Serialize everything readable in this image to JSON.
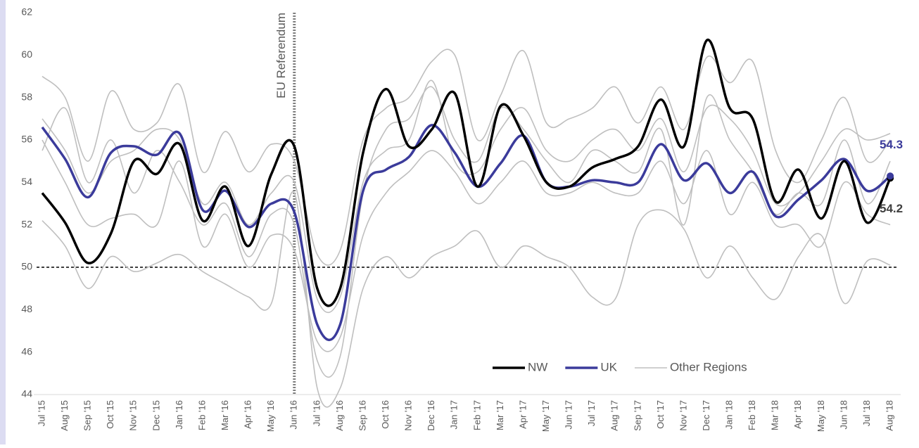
{
  "chart_data": {
    "type": "line",
    "categories": [
      "Jul '15",
      "Aug '15",
      "Sep '15",
      "Oct '15",
      "Nov '15",
      "Dec '15",
      "Jan '16",
      "Feb '16",
      "Mar '16",
      "Apr '16",
      "May '16",
      "Jun '16",
      "Jul '16",
      "Aug '16",
      "Sep '16",
      "Oct '16",
      "Nov '16",
      "Dec '16",
      "Jan '17",
      "Feb '17",
      "Mar '17",
      "Apr '17",
      "May '17",
      "Jun '17",
      "Jul '17",
      "Aug '17",
      "Sep '17",
      "Oct '17",
      "Nov '17",
      "Dec '17",
      "Jan '18",
      "Feb '18",
      "Mar '18",
      "Apr '18",
      "May '18",
      "Jun '18",
      "Jul '18",
      "Aug '18"
    ],
    "series": [
      {
        "name": "NW",
        "color": "#000000",
        "values": [
          53.5,
          52.1,
          50.2,
          51.6,
          55.0,
          54.4,
          55.8,
          52.2,
          53.8,
          51.0,
          54.4,
          55.7,
          49.0,
          49.0,
          55.4,
          58.4,
          55.7,
          56.5,
          58.2,
          53.8,
          57.6,
          56.2,
          54.0,
          53.8,
          54.7,
          55.1,
          55.7,
          57.9,
          55.7,
          60.7,
          57.5,
          57.0,
          53.1,
          54.6,
          52.3,
          55.0,
          52.1,
          54.2
        ]
      },
      {
        "name": "UK",
        "color": "#3b3b9b",
        "values": [
          56.6,
          55.1,
          53.3,
          55.4,
          55.7,
          55.3,
          56.3,
          52.7,
          53.6,
          51.9,
          53.0,
          52.6,
          47.3,
          47.3,
          53.6,
          54.6,
          55.2,
          56.7,
          55.4,
          53.8,
          54.9,
          56.2,
          54.0,
          53.8,
          54.1,
          54.0,
          54.0,
          55.8,
          54.1,
          54.9,
          53.5,
          54.5,
          52.4,
          53.2,
          54.1,
          55.1,
          53.6,
          54.3
        ]
      }
    ],
    "other_regions": {
      "name": "Other Regions",
      "color": "#bfbfbf",
      "lines": [
        [
          59.0,
          58.0,
          55.0,
          58.3,
          56.5,
          56.8,
          58.6,
          54.5,
          56.4,
          54.5,
          55.8,
          55.0,
          50.6,
          50.8,
          56.0,
          57.5,
          58.0,
          59.7,
          60.0,
          56.0,
          58.1,
          60.2,
          56.8,
          57.0,
          57.5,
          58.5,
          56.8,
          58.5,
          56.5,
          59.9,
          58.7,
          59.7,
          55.5,
          54.0,
          56.0,
          58.0,
          55.0,
          56.0
        ],
        [
          52.2,
          51.0,
          49.0,
          50.5,
          49.8,
          50.2,
          50.6,
          49.8,
          49.2,
          48.6,
          48.3,
          53.5,
          44.3,
          44.3,
          49.0,
          50.5,
          49.5,
          50.5,
          51.0,
          51.7,
          50.0,
          51.0,
          50.5,
          50.0,
          48.6,
          48.5,
          52.0,
          52.7,
          51.8,
          49.5,
          51.0,
          49.5,
          48.5,
          50.5,
          51.5,
          48.3,
          50.3,
          50.1
        ],
        [
          55.5,
          57.5,
          54.0,
          56.0,
          53.5,
          55.5,
          54.0,
          52.0,
          53.0,
          50.5,
          52.5,
          52.0,
          45.6,
          45.8,
          53.5,
          56.5,
          57.0,
          58.5,
          56.0,
          55.0,
          57.5,
          56.5,
          55.0,
          54.0,
          55.5,
          55.0,
          54.5,
          56.5,
          52.0,
          58.0,
          56.0,
          54.5,
          52.5,
          53.5,
          53.0,
          56.0,
          53.0,
          55.0
        ],
        [
          56.0,
          54.0,
          52.0,
          52.3,
          52.5,
          52.0,
          55.0,
          51.0,
          52.5,
          50.0,
          51.5,
          50.8,
          46.5,
          46.7,
          51.5,
          53.5,
          54.5,
          55.5,
          54.5,
          53.0,
          54.0,
          55.0,
          53.5,
          53.5,
          54.0,
          53.5,
          53.5,
          55.0,
          53.0,
          55.5,
          52.5,
          54.0,
          52.0,
          52.0,
          51.0,
          54.0,
          52.5,
          52.0
        ],
        [
          57.0,
          55.5,
          53.5,
          55.0,
          55.5,
          56.5,
          56.0,
          53.0,
          54.0,
          52.0,
          53.5,
          54.0,
          48.5,
          48.6,
          54.0,
          55.5,
          56.0,
          58.8,
          55.0,
          54.5,
          56.5,
          57.5,
          55.5,
          55.0,
          56.0,
          56.5,
          55.5,
          57.0,
          54.5,
          57.5,
          57.0,
          55.5,
          53.0,
          53.5,
          55.0,
          56.5,
          56.0,
          56.3
        ]
      ]
    },
    "reference_line": 50,
    "annotation": {
      "text": "EU Referendum",
      "category_index": 11
    },
    "ylim": [
      44,
      62
    ],
    "yticks": [
      44,
      46,
      48,
      50,
      52,
      54,
      56,
      58,
      60,
      62
    ],
    "grid": false,
    "legend": "lower right",
    "end_labels": true
  }
}
